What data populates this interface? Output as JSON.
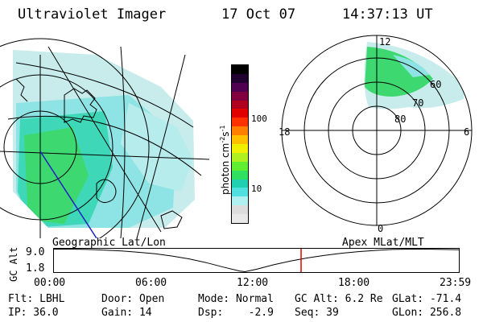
{
  "header": {
    "instrument": "Ultraviolet Imager",
    "date": "17 Oct 07",
    "time": "14:37:13 UT"
  },
  "left_panel": {
    "label": "Geographic Lat/Lon"
  },
  "right_panel": {
    "label": "Apex MLat/MLT",
    "mlt_labels": [
      "12",
      "18",
      "6",
      "0"
    ],
    "mlat_labels": [
      "60",
      "70",
      "80"
    ]
  },
  "colorbar": {
    "unit_label": "photon cm",
    "unit_sup1": "-2",
    "unit_mid": "s",
    "unit_sup2": "-1",
    "tick_labels": [
      "100",
      "10"
    ],
    "colors": [
      "#e8e8e8",
      "#dcdcdc",
      "#b0f0f0",
      "#50e0e0",
      "#20d0b0",
      "#30e060",
      "#60ee30",
      "#b0f020",
      "#f0f000",
      "#ffc000",
      "#ff8000",
      "#ff3000",
      "#e00000",
      "#b00020",
      "#800040",
      "#500050",
      "#200030",
      "#000000"
    ]
  },
  "altitude_plot": {
    "ylabel": "GC Alt",
    "y_ticks": [
      "9.0",
      "1.8"
    ],
    "x_ticks": [
      "00:00",
      "06:00",
      "12:00",
      "18:00",
      "23:59"
    ],
    "curve_hours": [
      0,
      1,
      2,
      3,
      4,
      5,
      6,
      7,
      8,
      9,
      10,
      11,
      11.3,
      12,
      13,
      14,
      15,
      16,
      17,
      18,
      19,
      20,
      21,
      22,
      23,
      23.98
    ],
    "curve_alt_re": [
      9.0,
      9.0,
      8.9,
      8.7,
      8.4,
      8.0,
      7.5,
      6.8,
      5.9,
      4.7,
      3.3,
      2.0,
      1.8,
      2.6,
      4.0,
      5.2,
      6.2,
      7.0,
      7.7,
      8.2,
      8.6,
      8.9,
      9.0,
      9.0,
      8.9,
      8.8
    ],
    "current_hour": 14.62,
    "line_color": "#000000",
    "marker_color": "#e00000"
  },
  "status": {
    "flt": "Flt: LBHL",
    "ip": "IP: 36.0",
    "door": "Door: Open",
    "gain": "Gain: 14",
    "mode": "Mode: Normal",
    "dsp": "Dsp:    -2.9",
    "gcalt": "GC Alt: 6.2 Re",
    "seq": "Seq: 39",
    "glat": "GLat: -71.4",
    "glon": "GLon: 256.8"
  }
}
